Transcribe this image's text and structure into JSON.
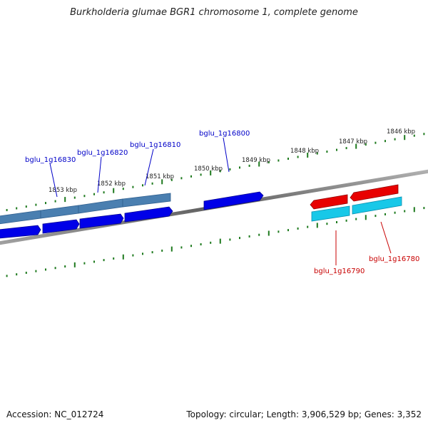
{
  "title": "Burkholderia glumae BGR1 chromosome 1, complete genome",
  "footer": {
    "accession": "Accession: NC_012724",
    "summary": "Topology: circular; Length: 3,906,529 bp; Genes: 3,352"
  },
  "colors": {
    "backbone": "#808080",
    "tick": "#1e7a1e",
    "forward_gene": "#0000e8",
    "forward_cds": "#4a7fb0",
    "reverse_gene": "#e80000",
    "reverse_cds": "#18c8e8",
    "forward_label": "#0000c8",
    "reverse_label": "#c80000"
  },
  "scale_labels": [
    "1853 kbp",
    "1852 kbp",
    "1851 kbp",
    "1850 kbp",
    "1849 kbp",
    "1848 kbp",
    "1847 kbp",
    "1846 kbp"
  ],
  "gene_labels": {
    "forward": [
      "bglu_1g16830",
      "bglu_1g16820",
      "bglu_1g16810",
      "bglu_1g16800"
    ],
    "reverse": [
      "bglu_1g16790",
      "bglu_1g16780"
    ]
  }
}
